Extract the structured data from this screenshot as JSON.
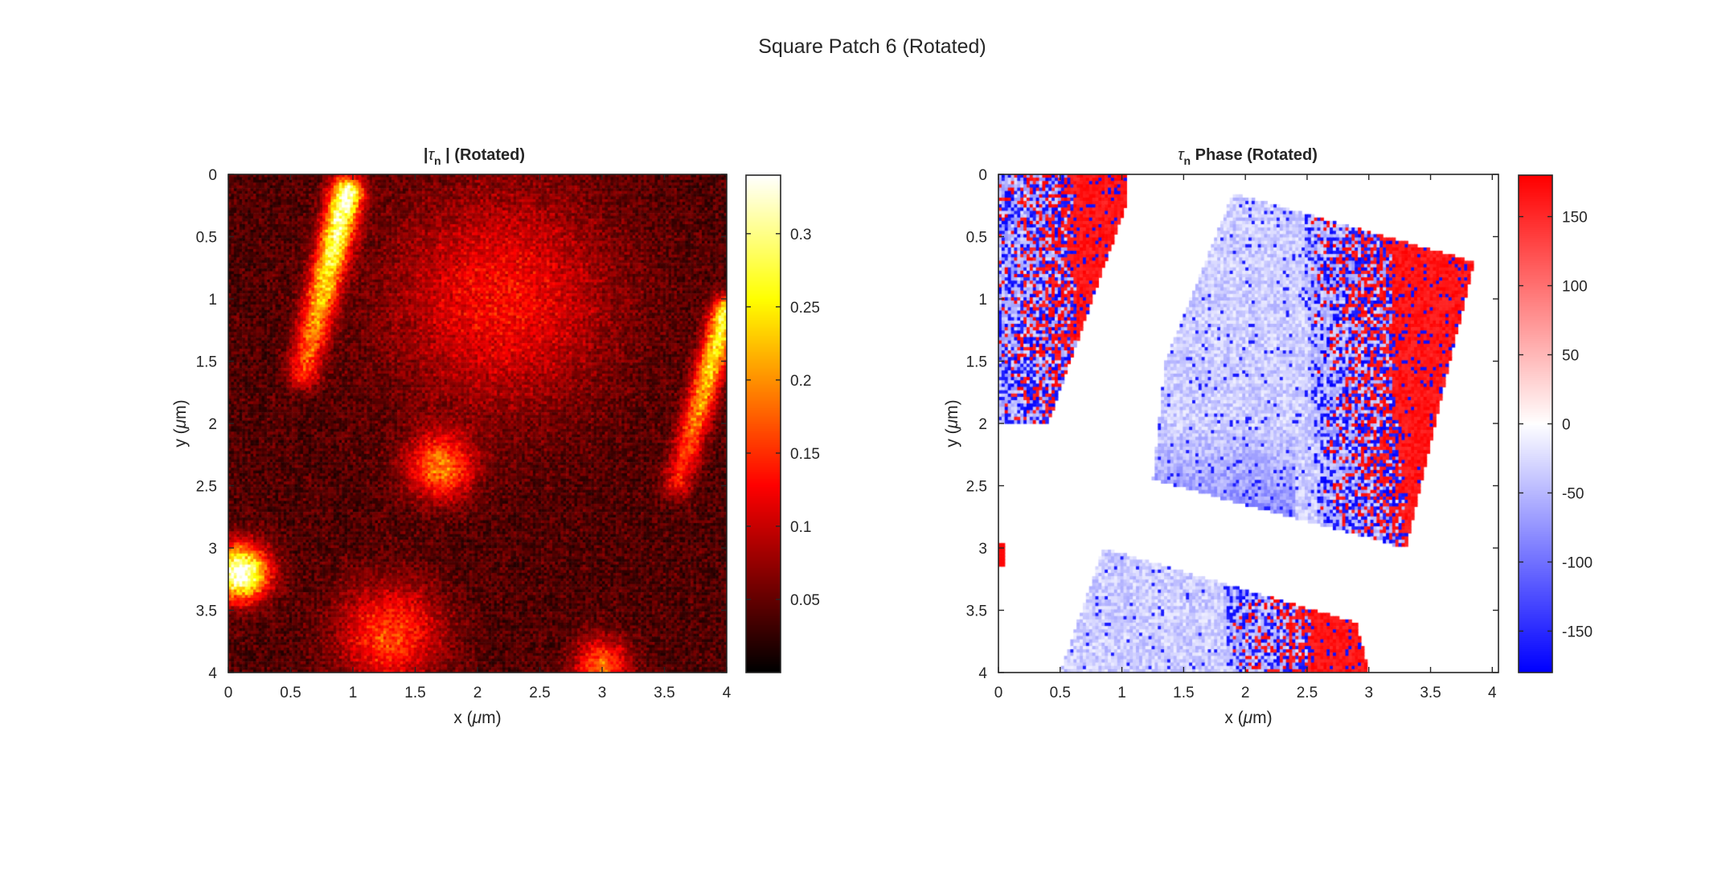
{
  "figure": {
    "title": "Square Patch 6 (Rotated)"
  },
  "chart_data": [
    {
      "type": "heatmap",
      "title_prefix": "|",
      "title_symbol": "τ",
      "title_sub": "n",
      "title_suffix": " | (Rotated)",
      "xlabel_pre": "x (",
      "xlabel_sym": "μ",
      "xlabel_post": "m)",
      "ylabel_pre": "y (",
      "ylabel_sym": "μ",
      "ylabel_post": "m)",
      "xlim": [
        0,
        4
      ],
      "ylim": [
        0,
        4
      ],
      "y_reversed": true,
      "xticks": [
        "0",
        "0.5",
        "1",
        "1.5",
        "2",
        "2.5",
        "3",
        "3.5",
        "4"
      ],
      "yticks": [
        "0",
        "0.5",
        "1",
        "1.5",
        "2",
        "2.5",
        "3",
        "3.5",
        "4"
      ],
      "colormap": "hot",
      "clim": [
        0,
        0.34
      ],
      "colorbar_ticks": [
        "0.05",
        "0.1",
        "0.15",
        "0.2",
        "0.25",
        "0.3"
      ],
      "colorbar_values": [
        0.05,
        0.1,
        0.15,
        0.2,
        0.25,
        0.3
      ],
      "background_level": 0.04,
      "features": [
        {
          "kind": "streak",
          "from": [
            0.95,
            0.15
          ],
          "to": [
            0.6,
            1.6
          ],
          "peak": 0.3,
          "width": 0.09
        },
        {
          "kind": "streak",
          "from": [
            4.0,
            1.1
          ],
          "to": [
            3.6,
            2.5
          ],
          "peak": 0.25,
          "width": 0.08
        },
        {
          "kind": "blob",
          "center": [
            0.1,
            3.2
          ],
          "peak": 0.32,
          "radius": 0.15
        },
        {
          "kind": "blob",
          "center": [
            1.7,
            2.35
          ],
          "peak": 0.15,
          "radius": 0.18
        },
        {
          "kind": "blob",
          "center": [
            2.2,
            1.0
          ],
          "peak": 0.09,
          "radius": 0.6
        },
        {
          "kind": "blob",
          "center": [
            1.3,
            3.7
          ],
          "peak": 0.12,
          "radius": 0.28
        },
        {
          "kind": "blob",
          "center": [
            3.0,
            3.95
          ],
          "peak": 0.14,
          "radius": 0.15
        }
      ]
    },
    {
      "type": "heatmap",
      "title_symbol": "τ",
      "title_sub": "n",
      "title_suffix": " Phase (Rotated)",
      "xlabel_pre": "x (",
      "xlabel_sym": "μ",
      "xlabel_post": "m)",
      "ylabel_pre": "y (",
      "ylabel_sym": "μ",
      "ylabel_post": "m)",
      "xlim": [
        0,
        4.05
      ],
      "ylim": [
        0,
        4
      ],
      "y_reversed": true,
      "xticks": [
        "0",
        "0.5",
        "1",
        "1.5",
        "2",
        "2.5",
        "3",
        "3.5",
        "4"
      ],
      "xtick_values": [
        0,
        0.5,
        1,
        1.5,
        2,
        2.5,
        3,
        3.5,
        4
      ],
      "yticks": [
        "0",
        "0.5",
        "1",
        "1.5",
        "2",
        "2.5",
        "3",
        "3.5",
        "4"
      ],
      "colormap": "blue-white-red",
      "clim": [
        -180,
        180
      ],
      "colorbar_ticks": [
        "-150",
        "-100",
        "-50",
        "0",
        "50",
        "100",
        "150"
      ],
      "colorbar_values": [
        -150,
        -100,
        -50,
        0,
        50,
        100,
        150
      ],
      "regions": [
        {
          "name": "top-left",
          "polygon": [
            [
              0.0,
              0.0
            ],
            [
              1.05,
              0.0
            ],
            [
              1.05,
              0.2
            ],
            [
              0.4,
              2.0
            ],
            [
              0.0,
              2.0
            ]
          ],
          "transition_x": [
            0.35,
            0.45
          ]
        },
        {
          "name": "center",
          "polygon": [
            [
              1.9,
              0.15
            ],
            [
              3.85,
              0.7
            ],
            [
              3.3,
              3.0
            ],
            [
              1.25,
              2.45
            ],
            [
              1.35,
              1.5
            ]
          ],
          "transition_x": [
            2.9,
            3.1
          ]
        },
        {
          "name": "bottom",
          "polygon": [
            [
              0.85,
              3.0
            ],
            [
              2.9,
              3.6
            ],
            [
              3.0,
              4.0
            ],
            [
              0.5,
              4.0
            ]
          ],
          "transition_x": [
            2.15,
            2.3
          ]
        },
        {
          "name": "left-edge",
          "polygon": [
            [
              0.0,
              2.95
            ],
            [
              0.05,
              2.95
            ],
            [
              0.05,
              3.15
            ],
            [
              0.0,
              3.15
            ]
          ],
          "transition_x": [
            -1,
            -1
          ]
        }
      ]
    }
  ]
}
